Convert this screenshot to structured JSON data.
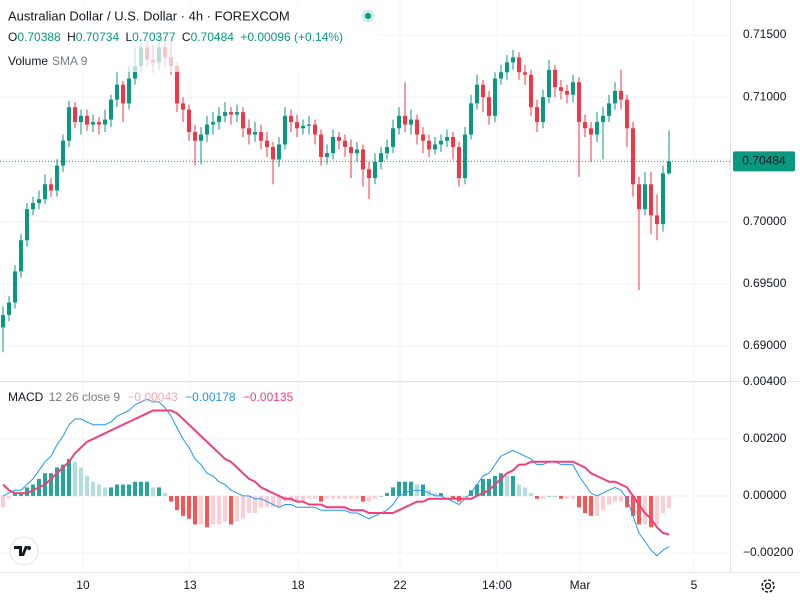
{
  "header": {
    "title": "Australian Dollar / U.S. Dollar · 4h · FOREXCOM",
    "ohlc": [
      {
        "label": "O",
        "value": "0.70388"
      },
      {
        "label": "H",
        "value": "0.70734"
      },
      {
        "label": "L",
        "value": "0.70377"
      },
      {
        "label": "C",
        "value": "0.70484"
      }
    ],
    "change": "+0.00096 (+0.14%)",
    "volume_label": "Volume",
    "volume_params": "SMA 9"
  },
  "chart_data": [
    {
      "type": "candlestick",
      "up_color": "#089981",
      "down_color": "#f23645",
      "grid": true,
      "xlim": [
        -0.5,
        121.17
      ],
      "ylim": [
        0.68727,
        0.71781
      ],
      "yticks": [
        {
          "value": 0.69,
          "label": "0.69000"
        },
        {
          "value": 0.695,
          "label": "0.69500"
        },
        {
          "value": 0.7,
          "label": "0.70000"
        },
        {
          "value": 0.705,
          "label": "0.70500"
        },
        {
          "value": 0.71,
          "label": "0.71000"
        },
        {
          "value": 0.715,
          "label": "0.71500"
        }
      ],
      "xticks": [
        {
          "value": 13.33,
          "label": "10"
        },
        {
          "value": 31.17,
          "label": "13"
        },
        {
          "value": 49.17,
          "label": "18"
        },
        {
          "value": 66.17,
          "label": "22"
        },
        {
          "value": 82.33,
          "label": "14:00"
        },
        {
          "value": 96.17,
          "label": "Mar"
        },
        {
          "value": 115.17,
          "label": "5"
        }
      ],
      "last_price_label": "0.70484",
      "ohlc": [
        [
          0.6915,
          0.6932,
          0.6895,
          0.6925
        ],
        [
          0.6925,
          0.694,
          0.692,
          0.6935
        ],
        [
          0.6935,
          0.6965,
          0.693,
          0.696
        ],
        [
          0.696,
          0.699,
          0.6955,
          0.6985
        ],
        [
          0.6985,
          0.7015,
          0.698,
          0.701
        ],
        [
          0.701,
          0.702,
          0.7005,
          0.7015
        ],
        [
          0.7015,
          0.7025,
          0.701,
          0.7018
        ],
        [
          0.7018,
          0.7038,
          0.7014,
          0.703
        ],
        [
          0.703,
          0.7035,
          0.702,
          0.7025
        ],
        [
          0.7025,
          0.705,
          0.702,
          0.7045
        ],
        [
          0.7045,
          0.707,
          0.704,
          0.7065
        ],
        [
          0.7065,
          0.7097,
          0.706,
          0.7092
        ],
        [
          0.7092,
          0.7096,
          0.7075,
          0.708
        ],
        [
          0.708,
          0.709,
          0.707,
          0.7085
        ],
        [
          0.7085,
          0.709,
          0.7073,
          0.7078
        ],
        [
          0.7078,
          0.7086,
          0.7072,
          0.708
        ],
        [
          0.708,
          0.7084,
          0.707,
          0.7078
        ],
        [
          0.7078,
          0.709,
          0.7072,
          0.7082
        ],
        [
          0.7082,
          0.7102,
          0.7076,
          0.7098
        ],
        [
          0.7098,
          0.712,
          0.7092,
          0.711
        ],
        [
          0.711,
          0.7113,
          0.708,
          0.7095
        ],
        [
          0.7095,
          0.7125,
          0.709,
          0.7115
        ],
        [
          0.7115,
          0.714,
          0.711,
          0.7125
        ],
        [
          0.7125,
          0.7148,
          0.712,
          0.714
        ],
        [
          0.714,
          0.7146,
          0.7125,
          0.713
        ],
        [
          0.713,
          0.7142,
          0.712,
          0.7128
        ],
        [
          0.7128,
          0.715,
          0.7122,
          0.714
        ],
        [
          0.714,
          0.7146,
          0.7125,
          0.7132
        ],
        [
          0.7132,
          0.7145,
          0.7118,
          0.7125
        ],
        [
          0.7125,
          0.7128,
          0.7088,
          0.7095
        ],
        [
          0.7095,
          0.71,
          0.708,
          0.709
        ],
        [
          0.709,
          0.7094,
          0.7065,
          0.7072
        ],
        [
          0.7072,
          0.7078,
          0.7045,
          0.7065
        ],
        [
          0.7065,
          0.7076,
          0.7046,
          0.707
        ],
        [
          0.707,
          0.7085,
          0.7064,
          0.7078
        ],
        [
          0.7078,
          0.7088,
          0.707,
          0.708
        ],
        [
          0.708,
          0.7092,
          0.7074,
          0.7085
        ],
        [
          0.7085,
          0.7096,
          0.708,
          0.7088
        ],
        [
          0.7088,
          0.7092,
          0.7078,
          0.7086
        ],
        [
          0.7086,
          0.7094,
          0.708,
          0.7088
        ],
        [
          0.7088,
          0.7092,
          0.7068,
          0.7075
        ],
        [
          0.7075,
          0.7082,
          0.7062,
          0.707
        ],
        [
          0.707,
          0.708,
          0.7064,
          0.7072
        ],
        [
          0.7072,
          0.7078,
          0.7058,
          0.7065
        ],
        [
          0.7065,
          0.7072,
          0.7052,
          0.706
        ],
        [
          0.706,
          0.7064,
          0.703,
          0.705
        ],
        [
          0.705,
          0.7068,
          0.7044,
          0.7062
        ],
        [
          0.7062,
          0.7092,
          0.7058,
          0.7085
        ],
        [
          0.7085,
          0.709,
          0.7072,
          0.708
        ],
        [
          0.708,
          0.7086,
          0.7068,
          0.7075
        ],
        [
          0.7075,
          0.7082,
          0.707,
          0.7077
        ],
        [
          0.7077,
          0.7085,
          0.707,
          0.7078
        ],
        [
          0.7078,
          0.7082,
          0.7062,
          0.707
        ],
        [
          0.707,
          0.7074,
          0.7045,
          0.7052
        ],
        [
          0.7052,
          0.7062,
          0.7046,
          0.7055
        ],
        [
          0.7055,
          0.7074,
          0.705,
          0.7068
        ],
        [
          0.7068,
          0.7072,
          0.7058,
          0.7065
        ],
        [
          0.7065,
          0.707,
          0.7052,
          0.706
        ],
        [
          0.706,
          0.7066,
          0.7035,
          0.7055
        ],
        [
          0.7055,
          0.7064,
          0.7048,
          0.7058
        ],
        [
          0.7058,
          0.7062,
          0.7028,
          0.7042
        ],
        [
          0.7042,
          0.7048,
          0.7018,
          0.7035
        ],
        [
          0.7035,
          0.7055,
          0.703,
          0.7048
        ],
        [
          0.7048,
          0.706,
          0.7042,
          0.7055
        ],
        [
          0.7055,
          0.7066,
          0.705,
          0.706
        ],
        [
          0.706,
          0.7082,
          0.7055,
          0.7075
        ],
        [
          0.7075,
          0.7092,
          0.707,
          0.7085
        ],
        [
          0.7085,
          0.7112,
          0.7072,
          0.7078
        ],
        [
          0.7078,
          0.709,
          0.707,
          0.7082
        ],
        [
          0.7082,
          0.7086,
          0.7062,
          0.707
        ],
        [
          0.707,
          0.7076,
          0.7055,
          0.7065
        ],
        [
          0.7065,
          0.707,
          0.7052,
          0.7058
        ],
        [
          0.7058,
          0.7068,
          0.7054,
          0.7062
        ],
        [
          0.7062,
          0.707,
          0.7056,
          0.7065
        ],
        [
          0.7065,
          0.7074,
          0.706,
          0.7068
        ],
        [
          0.7068,
          0.7072,
          0.705,
          0.706
        ],
        [
          0.706,
          0.7064,
          0.7028,
          0.7035
        ],
        [
          0.7035,
          0.7076,
          0.703,
          0.707
        ],
        [
          0.707,
          0.7102,
          0.7066,
          0.7095
        ],
        [
          0.7095,
          0.7118,
          0.709,
          0.711
        ],
        [
          0.711,
          0.7114,
          0.7088,
          0.71
        ],
        [
          0.71,
          0.7105,
          0.7078,
          0.7085
        ],
        [
          0.7085,
          0.712,
          0.708,
          0.7115
        ],
        [
          0.7115,
          0.7126,
          0.711,
          0.712
        ],
        [
          0.712,
          0.7134,
          0.7114,
          0.7128
        ],
        [
          0.7128,
          0.7138,
          0.7122,
          0.7132
        ],
        [
          0.7132,
          0.7136,
          0.7114,
          0.712
        ],
        [
          0.712,
          0.7126,
          0.711,
          0.7118
        ],
        [
          0.7118,
          0.7122,
          0.7085,
          0.7092
        ],
        [
          0.7092,
          0.7098,
          0.7072,
          0.708
        ],
        [
          0.708,
          0.7106,
          0.7075,
          0.71
        ],
        [
          0.71,
          0.713,
          0.7095,
          0.7122
        ],
        [
          0.7122,
          0.7126,
          0.71,
          0.7108
        ],
        [
          0.7108,
          0.7114,
          0.7098,
          0.7105
        ],
        [
          0.7105,
          0.711,
          0.7095,
          0.7102
        ],
        [
          0.7102,
          0.7118,
          0.7096,
          0.7112
        ],
        [
          0.7112,
          0.7116,
          0.7036,
          0.708
        ],
        [
          0.708,
          0.7086,
          0.7068,
          0.7075
        ],
        [
          0.7075,
          0.708,
          0.7048,
          0.707
        ],
        [
          0.707,
          0.7088,
          0.7064,
          0.708
        ],
        [
          0.708,
          0.7092,
          0.705,
          0.7085
        ],
        [
          0.7085,
          0.7102,
          0.708,
          0.7095
        ],
        [
          0.7095,
          0.7112,
          0.709,
          0.7105
        ],
        [
          0.7105,
          0.7122,
          0.709,
          0.7098
        ],
        [
          0.7098,
          0.7102,
          0.706,
          0.7075
        ],
        [
          0.7075,
          0.708,
          0.702,
          0.703
        ],
        [
          0.703,
          0.7036,
          0.6945,
          0.701
        ],
        [
          0.701,
          0.704,
          0.7005,
          0.703
        ],
        [
          0.703,
          0.704,
          0.699,
          0.7005
        ],
        [
          0.7005,
          0.7022,
          0.6985,
          0.6998
        ],
        [
          0.6998,
          0.7045,
          0.6992,
          0.70388
        ],
        [
          0.70388,
          0.70734,
          0.70377,
          0.70484
        ]
      ]
    },
    {
      "type": "macd",
      "title": "MACD",
      "params": "12 26 close 9",
      "ylim": [
        -0.00267,
        0.004
      ],
      "yticks": [
        {
          "value": 0.004,
          "label": "0.00400"
        },
        {
          "value": 0.002,
          "label": "0.00200"
        },
        {
          "value": 0,
          "label": "0.00000"
        },
        {
          "value": -0.002,
          "label": "−0.00200"
        }
      ],
      "series": [
        {
          "style": "histogram",
          "color": "#f7a9b4",
          "value_label": "−0.00043",
          "colors": [
            "#26a69a",
            "#b2dfdb",
            "#ffcdd2",
            "#ff5252"
          ],
          "values": [
            -0.0004,
            -0.0001,
            0.0001,
            0.0001,
            0.0003,
            0.0004,
            0.0006,
            0.0008,
            0.0008,
            0.001,
            0.0011,
            0.0013,
            0.0012,
            0.001,
            0.0007,
            0.0005,
            0.0004,
            0.0003,
            0.0003,
            0.0004,
            0.0004,
            0.0004,
            0.0005,
            0.0005,
            0.0005,
            0.0003,
            0.0003,
            0.0001,
            -0.0002,
            -0.0005,
            -0.0007,
            -0.0008,
            -0.001,
            -0.001,
            -0.0011,
            -0.001,
            -0.001,
            -0.0009,
            -0.001,
            -0.0009,
            -0.0008,
            -0.0006,
            -0.0006,
            -0.0004,
            -0.0004,
            -0.0004,
            -0.0004,
            -0.0002,
            -0.0002,
            -0.0002,
            -0.0002,
            -0.0001,
            -0.0001,
            -0.0002,
            -0.0001,
            -0.0001,
            -0.0001,
            -0.0001,
            -0.0001,
            -0.0001,
            -0.0002,
            -0.0002,
            -0.0001,
            0.0,
            0.0001,
            0.0003,
            0.0005,
            0.0005,
            0.0005,
            0.0004,
            0.0004,
            0.0002,
            0.0001,
            0.0001,
            0.0,
            -0.0001,
            -0.0002,
            0.0,
            0.0002,
            0.0004,
            0.0006,
            0.0006,
            0.0007,
            0.0008,
            0.0007,
            0.0007,
            0.0004,
            0.0003,
            0.0001,
            -0.0001,
            -0.0001,
            0.0,
            0.0,
            -0.0001,
            -0.0001,
            -0.0001,
            -0.0004,
            -0.0006,
            -0.0007,
            -0.0007,
            -0.0005,
            -0.0003,
            -0.0002,
            -0.0002,
            -0.0004,
            -0.0007,
            -0.001,
            -0.001,
            -0.0011,
            -0.001,
            -0.0006,
            -0.00043
          ]
        },
        {
          "style": "line",
          "color": "#2196f3",
          "width": 1,
          "value_label": "−0.00178",
          "values": [
            0.0,
            0.0001,
            0.0002,
            0.0002,
            0.0004,
            0.0006,
            0.0009,
            0.0012,
            0.0014,
            0.0018,
            0.0021,
            0.0025,
            0.0027,
            0.0027,
            0.0026,
            0.0025,
            0.0025,
            0.0025,
            0.0026,
            0.0028,
            0.0029,
            0.003,
            0.0032,
            0.0033,
            0.0034,
            0.0033,
            0.0033,
            0.0031,
            0.0028,
            0.0024,
            0.002,
            0.0017,
            0.0013,
            0.0011,
            0.0008,
            0.0007,
            0.0005,
            0.0004,
            0.0002,
            0.0001,
            0.0,
            0.0,
            -0.0001,
            -0.0001,
            -0.0002,
            -0.0003,
            -0.0004,
            -0.0003,
            -0.0003,
            -0.0004,
            -0.0004,
            -0.0004,
            -0.0004,
            -0.0005,
            -0.0005,
            -0.0005,
            -0.0005,
            -0.0005,
            -0.0006,
            -0.0006,
            -0.0007,
            -0.0008,
            -0.0007,
            -0.0006,
            -0.0005,
            -0.0003,
            0.0,
            0.0001,
            0.0002,
            0.0002,
            0.0002,
            0.0001,
            0.0,
            0.0,
            -0.0001,
            -0.0002,
            -0.0003,
            -0.0001,
            0.0001,
            0.0004,
            0.0007,
            0.0008,
            0.0011,
            0.0014,
            0.0015,
            0.0016,
            0.0015,
            0.0014,
            0.0013,
            0.0011,
            0.0011,
            0.0012,
            0.0012,
            0.0011,
            0.0011,
            0.0011,
            0.0007,
            0.0004,
            0.0001,
            0.0,
            0.0001,
            0.0002,
            0.0003,
            0.0002,
            -0.0001,
            -0.0007,
            -0.0013,
            -0.0016,
            -0.0019,
            -0.0021,
            -0.0019,
            -0.00178
          ]
        },
        {
          "style": "line",
          "color": "#f23f7a",
          "width": 2,
          "value_label": "−0.00135",
          "values": [
            0.0004,
            0.0002,
            0.0001,
            0.0001,
            0.0001,
            0.0002,
            0.0003,
            0.0004,
            0.0006,
            0.0008,
            0.001,
            0.0012,
            0.0015,
            0.0017,
            0.0019,
            0.002,
            0.0021,
            0.0022,
            0.0023,
            0.0024,
            0.0025,
            0.0026,
            0.0027,
            0.0028,
            0.0029,
            0.003,
            0.003,
            0.003,
            0.003,
            0.0029,
            0.0027,
            0.0025,
            0.0023,
            0.0021,
            0.0019,
            0.0017,
            0.0015,
            0.0013,
            0.0012,
            0.001,
            0.0008,
            0.0006,
            0.0005,
            0.0003,
            0.0002,
            0.0001,
            0.0,
            -0.0001,
            -0.0001,
            -0.0002,
            -0.0002,
            -0.0003,
            -0.0003,
            -0.0003,
            -0.0004,
            -0.0004,
            -0.0004,
            -0.0004,
            -0.0005,
            -0.0005,
            -0.0005,
            -0.0006,
            -0.0006,
            -0.0006,
            -0.0006,
            -0.0006,
            -0.0005,
            -0.0004,
            -0.0003,
            -0.0002,
            -0.0002,
            -0.0001,
            -0.0001,
            -0.0001,
            -0.0001,
            -0.0001,
            -0.0001,
            -0.0001,
            -0.0001,
            0.0,
            0.0001,
            0.0002,
            0.0004,
            0.0006,
            0.0008,
            0.0009,
            0.0011,
            0.0011,
            0.0012,
            0.0012,
            0.0012,
            0.0012,
            0.0012,
            0.0012,
            0.0012,
            0.0012,
            0.0011,
            0.001,
            0.0008,
            0.0007,
            0.0006,
            0.0005,
            0.0005,
            0.0004,
            0.0003,
            0.0,
            -0.0003,
            -0.0006,
            -0.0008,
            -0.0011,
            -0.0013,
            -0.00135
          ]
        }
      ]
    }
  ]
}
